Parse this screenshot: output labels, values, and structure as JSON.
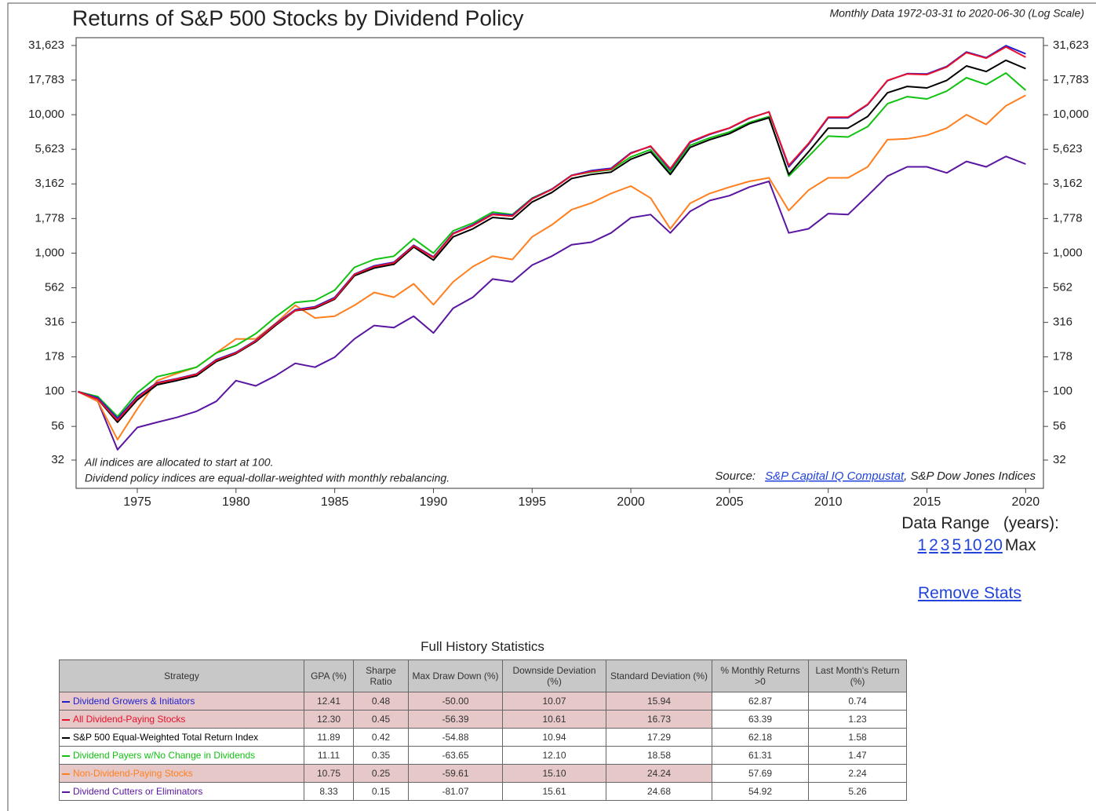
{
  "chart_data": {
    "type": "line",
    "title": "Returns of S&P 500 Stocks by Dividend Policy",
    "subtitle": "Monthly Data 1972-03-31 to 2020-06-30 (Log Scale)",
    "annotations": [
      "All indices are allocated to start at 100.",
      "Dividend policy indices are equal-dollar-weighted with monthly rebalancing."
    ],
    "source": {
      "label": "Source:",
      "link": "S&P Capital IQ Compustat",
      "rest": ", S&P Dow Jones Indices"
    },
    "log_scale": true,
    "x": [
      1972,
      1973,
      1974,
      1975,
      1976,
      1977,
      1978,
      1979,
      1980,
      1981,
      1982,
      1983,
      1984,
      1985,
      1986,
      1987,
      1988,
      1989,
      1990,
      1991,
      1992,
      1993,
      1994,
      1995,
      1996,
      1997,
      1998,
      1999,
      2000,
      2001,
      2002,
      2003,
      2004,
      2005,
      2006,
      2007,
      2008,
      2009,
      2010,
      2011,
      2012,
      2013,
      2014,
      2015,
      2016,
      2017,
      2018,
      2019,
      2020
    ],
    "xlim": [
      1971.9,
      2020.9
    ],
    "xticks": [
      1975,
      1980,
      1985,
      1990,
      1995,
      2000,
      2005,
      2010,
      2015,
      2020
    ],
    "ylim": [
      20,
      36000
    ],
    "yticks": [
      {
        "value": 31623,
        "label": "31,623"
      },
      {
        "value": 17783,
        "label": "17,783"
      },
      {
        "value": 10000,
        "label": "10,000"
      },
      {
        "value": 5623,
        "label": "5,623"
      },
      {
        "value": 3162,
        "label": "3,162"
      },
      {
        "value": 1778,
        "label": "1,778"
      },
      {
        "value": 1000,
        "label": "1,000"
      },
      562,
      316,
      178,
      100,
      56,
      32
    ],
    "series": [
      {
        "name": "Dividend Growers & Initiators",
        "color": "#1f1fd0",
        "values": [
          100,
          90,
          64,
          92,
          116,
          124,
          134,
          170,
          192,
          234,
          308,
          390,
          410,
          478,
          705,
          810,
          860,
          1140,
          940,
          1390,
          1600,
          1920,
          1880,
          2480,
          2900,
          3650,
          3950,
          4100,
          5300,
          5900,
          4000,
          6300,
          7200,
          8000,
          9400,
          10500,
          4200,
          6100,
          9500,
          9500,
          11800,
          17600,
          19800,
          19700,
          22300,
          28400,
          25800,
          31500,
          27500
        ]
      },
      {
        "name": "All Dividend-Paying Stocks",
        "color": "#e8102a",
        "values": [
          100,
          88,
          62,
          90,
          115,
          123,
          133,
          168,
          190,
          232,
          305,
          385,
          405,
          470,
          700,
          800,
          850,
          1130,
          930,
          1380,
          1580,
          1900,
          1850,
          2460,
          2880,
          3630,
          3890,
          4040,
          5250,
          5940,
          4070,
          6380,
          7260,
          8030,
          9460,
          10450,
          4300,
          6200,
          9600,
          9600,
          11900,
          17700,
          19700,
          19500,
          22100,
          28100,
          25600,
          30900,
          26000
        ]
      },
      {
        "name": "S&P 500 Equal-Weighted Total Return Index",
        "color": "#000000",
        "values": [
          100,
          88,
          60,
          87,
          112,
          120,
          130,
          165,
          188,
          229,
          300,
          384,
          400,
          465,
          687,
          780,
          830,
          1107,
          890,
          1310,
          1500,
          1810,
          1760,
          2340,
          2740,
          3460,
          3700,
          3850,
          4770,
          5400,
          3700,
          5800,
          6600,
          7300,
          8600,
          9500,
          3700,
          5400,
          8000,
          8000,
          9700,
          14400,
          16000,
          15600,
          17700,
          22500,
          20500,
          24700,
          21500
        ]
      },
      {
        "name": "Dividend Payers w/No Change in Dividends",
        "color": "#12c212",
        "values": [
          100,
          92,
          66,
          98,
          128,
          138,
          150,
          190,
          215,
          262,
          345,
          440,
          455,
          540,
          790,
          900,
          950,
          1270,
          1000,
          1450,
          1650,
          1980,
          1900,
          2500,
          2900,
          3650,
          3850,
          4000,
          4950,
          5600,
          3850,
          6000,
          6800,
          7500,
          8800,
          9700,
          3600,
          5000,
          7000,
          6900,
          8200,
          12000,
          13500,
          13000,
          14800,
          18500,
          16500,
          20000,
          15000
        ]
      },
      {
        "name": "Non-Dividend-Paying Stocks",
        "color": "#ff7f1e",
        "values": [
          100,
          85,
          45,
          75,
          120,
          135,
          150,
          190,
          240,
          240,
          310,
          420,
          340,
          350,
          420,
          520,
          480,
          600,
          424,
          620,
          800,
          950,
          900,
          1310,
          1600,
          2060,
          2300,
          2700,
          3050,
          2500,
          1500,
          2290,
          2700,
          3000,
          3300,
          3500,
          2030,
          2850,
          3500,
          3500,
          4200,
          6600,
          6700,
          7100,
          8000,
          10000,
          8500,
          11600,
          13800
        ]
      },
      {
        "name": "Dividend Cutters or Eliminators",
        "color": "#5a16a0",
        "values": [
          100,
          85,
          38,
          55,
          60,
          65,
          72,
          85,
          120,
          110,
          130,
          160,
          150,
          177,
          240,
          300,
          290,
          350,
          265,
          400,
          480,
          650,
          620,
          820,
          950,
          1150,
          1200,
          1400,
          1800,
          1900,
          1400,
          2000,
          2400,
          2600,
          3000,
          3300,
          1400,
          1500,
          1930,
          1900,
          2600,
          3600,
          4200,
          4200,
          3800,
          4600,
          4200,
          5000,
          4400
        ]
      }
    ]
  },
  "controls": {
    "range_label": "Data Range   (years):",
    "options": [
      "1",
      "2",
      "3",
      "5",
      "10",
      "20"
    ],
    "current": "Max",
    "remove_stats": "Remove Stats"
  },
  "stats": {
    "title": "Full History Statistics",
    "headers": [
      "Strategy",
      "GPA (%)",
      "Sharpe Ratio",
      "Max Draw Down (%)",
      "Downside Deviation (%)",
      "Standard Deviation (%)",
      "% Monthly Returns >0",
      "Last Month's Return (%)"
    ],
    "rows": [
      [
        "12.41",
        "0.48",
        "-50.00",
        "10.07",
        "15.94",
        "62.87",
        "0.74"
      ],
      [
        "12.30",
        "0.45",
        "-56.39",
        "10.61",
        "16.73",
        "63.39",
        "1.23"
      ],
      [
        "11.89",
        "0.42",
        "-54.88",
        "10.94",
        "17.29",
        "62.18",
        "1.58"
      ],
      [
        "11.11",
        "0.35",
        "-63.65",
        "12.10",
        "18.58",
        "61.31",
        "1.47"
      ],
      [
        "10.75",
        "0.25",
        "-59.61",
        "15.10",
        "24.24",
        "57.69",
        "2.24"
      ],
      [
        "8.33",
        "0.15",
        "-81.07",
        "15.61",
        "24.68",
        "54.92",
        "5.26"
      ]
    ]
  }
}
